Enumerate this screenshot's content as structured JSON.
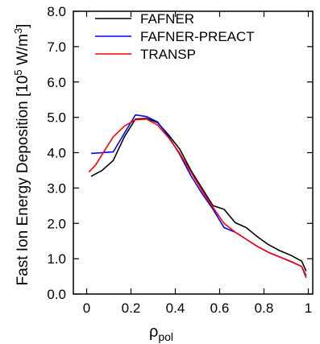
{
  "chart_data": {
    "type": "line",
    "xlabel": "ρ",
    "xlabel_subscript": "pol",
    "ylabel_main": "Fast Ion Energy Deposition [10",
    "ylabel_exp1": "5",
    "ylabel_units": " W/m",
    "ylabel_exp2": "3",
    "ylabel_close": "]",
    "xlim": [
      -0.06,
      1.02
    ],
    "ylim": [
      0.0,
      8.0
    ],
    "xticks": [
      "0",
      "0.2",
      "0.4",
      "0.6",
      "0.8",
      "1"
    ],
    "xtick_values": [
      0,
      0.2,
      0.4,
      0.6,
      0.8,
      1.0
    ],
    "yticks": [
      "0.0",
      "1.0",
      "2.0",
      "3.0",
      "4.0",
      "5.0",
      "6.0",
      "7.0",
      "8.0"
    ],
    "ytick_values": [
      0,
      1,
      2,
      3,
      4,
      5,
      6,
      7,
      8
    ],
    "legend_position": "top-left",
    "series": [
      {
        "name": "FAFNER",
        "color": "#000000",
        "x": [
          0.02,
          0.07,
          0.12,
          0.17,
          0.22,
          0.27,
          0.32,
          0.37,
          0.42,
          0.47,
          0.52,
          0.57,
          0.62,
          0.67,
          0.72,
          0.77,
          0.82,
          0.87,
          0.92,
          0.97,
          0.99
        ],
        "y": [
          3.33,
          3.5,
          3.78,
          4.45,
          4.95,
          4.97,
          4.85,
          4.5,
          4.1,
          3.5,
          3.0,
          2.5,
          2.4,
          2.02,
          1.88,
          1.62,
          1.4,
          1.23,
          1.1,
          0.93,
          0.65
        ]
      },
      {
        "name": "FAFNER-PREACT",
        "color": "#0000ff",
        "x": [
          0.02,
          0.07,
          0.12,
          0.17,
          0.22,
          0.27,
          0.32,
          0.37,
          0.42,
          0.47,
          0.52,
          0.57,
          0.62,
          0.67,
          0.72,
          0.77,
          0.82,
          0.87,
          0.92,
          0.97,
          0.99
        ],
        "y": [
          3.98,
          4.0,
          4.02,
          4.55,
          5.07,
          5.02,
          4.87,
          4.45,
          3.95,
          3.35,
          2.85,
          2.4,
          1.88,
          1.75,
          1.55,
          1.35,
          1.18,
          1.05,
          0.92,
          0.78,
          0.52
        ]
      },
      {
        "name": "TRANSP",
        "color": "#ff0000",
        "x": [
          0.01,
          0.04,
          0.08,
          0.12,
          0.17,
          0.22,
          0.27,
          0.32,
          0.37,
          0.42,
          0.47,
          0.52,
          0.57,
          0.62,
          0.67,
          0.72,
          0.77,
          0.82,
          0.87,
          0.92,
          0.97,
          0.99
        ],
        "y": [
          3.45,
          3.65,
          4.05,
          4.45,
          4.75,
          4.93,
          4.95,
          4.78,
          4.42,
          3.98,
          3.45,
          2.93,
          2.45,
          2.0,
          1.75,
          1.55,
          1.35,
          1.18,
          1.05,
          0.93,
          0.78,
          0.46
        ]
      }
    ]
  }
}
